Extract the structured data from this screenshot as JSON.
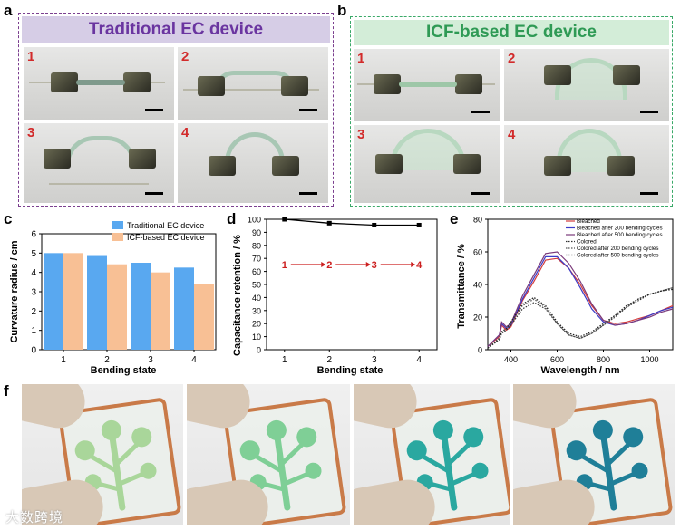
{
  "panel_labels": {
    "a": "a",
    "b": "b",
    "c": "c",
    "d": "d",
    "e": "e",
    "f": "f"
  },
  "panel_a": {
    "title": "Traditional EC device",
    "border_color": "#7b3f8f",
    "banner_color": "#d6cde6",
    "title_color": "#6a35a0",
    "photos": [
      "1",
      "2",
      "3",
      "4"
    ]
  },
  "panel_b": {
    "title": "ICF-based EC device",
    "border_color": "#3aa968",
    "banner_color": "#d3edd8",
    "title_color": "#2f9a55",
    "photos": [
      "1",
      "2",
      "3",
      "4"
    ]
  },
  "chart_data": [
    {
      "type": "bar",
      "panel": "c",
      "categories": [
        "1",
        "2",
        "3",
        "4"
      ],
      "series": [
        {
          "name": "Traditional EC device",
          "values": [
            5.0,
            4.85,
            4.5,
            4.25
          ],
          "color": "#59a8f0"
        },
        {
          "name": "ICF-based EC device",
          "values": [
            5.0,
            4.42,
            4.0,
            3.42
          ],
          "color": "#f8c095"
        }
      ],
      "xlabel": "Bending state",
      "ylabel": "Curvature radius / cm",
      "ylim": [
        0,
        6
      ],
      "yticks": [
        "0",
        "1",
        "2",
        "3",
        "4",
        "5",
        "6"
      ],
      "legend": "top-right"
    },
    {
      "type": "line",
      "panel": "d",
      "x": [
        1,
        2,
        3,
        4
      ],
      "xticks": [
        "1",
        "2",
        "3",
        "4"
      ],
      "series": [
        {
          "values": [
            100,
            97,
            95.5,
            95.5
          ],
          "color": "#000000"
        }
      ],
      "xlabel": "Bending state",
      "ylabel": "Capacitance retention / %",
      "ylim": [
        0,
        100
      ],
      "yticks": [
        "0",
        "10",
        "20",
        "30",
        "40",
        "50",
        "60",
        "70",
        "80",
        "90",
        "100"
      ],
      "annotation": [
        "1",
        "2",
        "3",
        "4"
      ],
      "annotation_color": "#cc1f1f"
    },
    {
      "type": "line",
      "panel": "e",
      "xlabel": "Wavelength / nm",
      "ylabel": "Transmittance / %",
      "xlim": [
        300,
        1100
      ],
      "ylim": [
        0,
        80
      ],
      "xticks": [
        "400",
        "600",
        "800",
        "1000"
      ],
      "yticks": [
        "0",
        "20",
        "40",
        "60",
        "80"
      ],
      "legend": "top-right",
      "series": [
        {
          "name": "Bleached",
          "color": "#d23b3b",
          "dash": "solid",
          "x": [
            300,
            350,
            360,
            380,
            400,
            450,
            500,
            550,
            600,
            650,
            700,
            750,
            800,
            850,
            900,
            950,
            1000,
            1050,
            1100
          ],
          "y": [
            2,
            8,
            15,
            12,
            14,
            30,
            42,
            55,
            56,
            50,
            40,
            27,
            18,
            16,
            17,
            19,
            21,
            24,
            27
          ]
        },
        {
          "name": "Bleached after 200 bending cycles",
          "color": "#3b3bc8",
          "dash": "solid",
          "x": [
            300,
            350,
            360,
            380,
            400,
            450,
            500,
            550,
            600,
            650,
            700,
            750,
            800,
            850,
            900,
            950,
            1000,
            1050,
            1100
          ],
          "y": [
            2,
            9,
            16,
            13,
            15,
            31,
            44,
            57,
            57,
            50,
            38,
            25,
            17,
            15,
            16,
            18,
            21,
            24,
            26
          ]
        },
        {
          "name": "Bleached after 500 bending cycles",
          "color": "#7a3a7a",
          "dash": "solid",
          "x": [
            300,
            350,
            360,
            380,
            400,
            450,
            500,
            550,
            600,
            650,
            700,
            750,
            800,
            850,
            900,
            950,
            1000,
            1050,
            1100
          ],
          "y": [
            2,
            9,
            17,
            14,
            16,
            33,
            46,
            59,
            60,
            53,
            42,
            28,
            18,
            15,
            16,
            18,
            20,
            23,
            25
          ]
        },
        {
          "name": "Colored",
          "color": "#333333",
          "dash": "dot",
          "x": [
            300,
            350,
            360,
            380,
            400,
            450,
            500,
            550,
            600,
            650,
            700,
            750,
            800,
            850,
            900,
            950,
            1000,
            1050,
            1100
          ],
          "y": [
            1,
            6,
            10,
            12,
            15,
            25,
            29,
            25,
            16,
            9,
            7,
            10,
            15,
            20,
            26,
            30,
            34,
            36,
            38
          ]
        },
        {
          "name": "Colored after 200 bending cycles",
          "color": "#555555",
          "dash": "dot",
          "x": [
            300,
            350,
            360,
            380,
            400,
            450,
            500,
            550,
            600,
            650,
            700,
            750,
            800,
            850,
            900,
            950,
            1000,
            1050,
            1100
          ],
          "y": [
            1,
            7,
            11,
            13,
            16,
            27,
            31,
            26,
            16,
            9,
            7,
            10,
            15,
            21,
            26,
            31,
            34,
            36,
            38
          ]
        },
        {
          "name": "Colored after 500 bending cycles",
          "color": "#222222",
          "dash": "dot",
          "x": [
            300,
            350,
            360,
            380,
            400,
            450,
            500,
            550,
            600,
            650,
            700,
            750,
            800,
            850,
            900,
            950,
            1000,
            1050,
            1100
          ],
          "y": [
            1,
            7,
            11,
            13,
            17,
            28,
            32,
            27,
            17,
            10,
            8,
            11,
            16,
            21,
            27,
            31,
            34,
            36,
            37
          ]
        }
      ]
    }
  ],
  "panel_f": {
    "film_colors": [
      "#a9d69a",
      "#7fcf96",
      "#2aa8a0",
      "#1f7f98"
    ]
  },
  "watermark": "大数跨境"
}
